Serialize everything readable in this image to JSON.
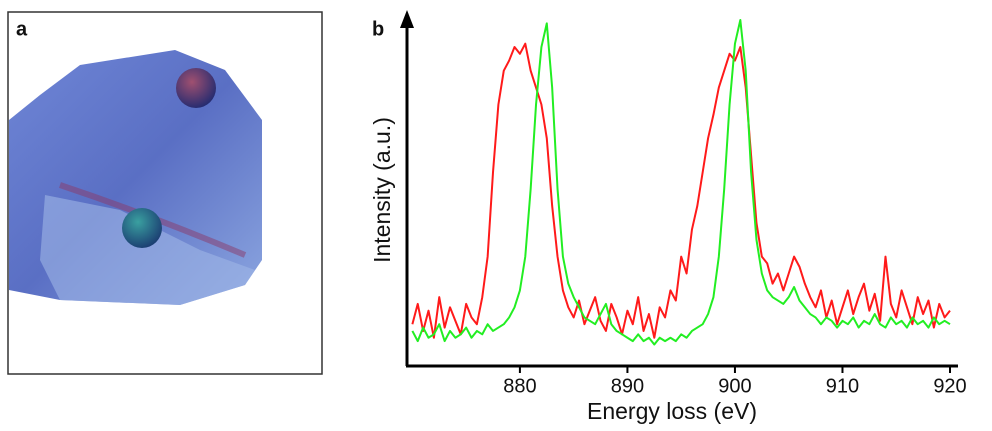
{
  "figure": {
    "panel_a_label": "a",
    "panel_b_label": "b"
  },
  "chart_data": {
    "type": "line",
    "x_label": "Energy loss (eV)",
    "y_label": "Intensity (a.u.)",
    "xlim": [
      869.5,
      920
    ],
    "xticks": [
      880,
      890,
      900,
      910,
      920
    ],
    "ylim": [
      0,
      1
    ],
    "x": [
      870,
      870.5,
      871,
      871.5,
      872,
      872.5,
      873,
      873.5,
      874,
      874.5,
      875,
      875.5,
      876,
      876.5,
      877,
      877.5,
      878,
      878.5,
      879,
      879.5,
      880,
      880.5,
      881,
      881.5,
      882,
      882.5,
      883,
      883.5,
      884,
      884.5,
      885,
      885.5,
      886,
      886.5,
      887,
      887.5,
      888,
      888.5,
      889,
      889.5,
      890,
      890.5,
      891,
      891.5,
      892,
      892.5,
      893,
      893.5,
      894,
      894.5,
      895,
      895.5,
      896,
      896.5,
      897,
      897.5,
      898,
      898.5,
      899,
      899.5,
      900,
      900.5,
      901,
      901.5,
      902,
      902.5,
      903,
      903.5,
      904,
      904.5,
      905,
      905.5,
      906,
      906.5,
      907,
      907.5,
      908,
      908.5,
      909,
      909.5,
      910,
      910.5,
      911,
      911.5,
      912,
      912.5,
      913,
      913.5,
      914,
      914.5,
      915,
      915.5,
      916,
      916.5,
      917,
      917.5,
      918,
      918.5,
      919,
      919.5,
      920
    ],
    "series": [
      {
        "color": "#ff1a1a",
        "values": [
          0.1,
          0.16,
          0.08,
          0.14,
          0.06,
          0.18,
          0.09,
          0.15,
          0.11,
          0.07,
          0.16,
          0.12,
          0.1,
          0.18,
          0.3,
          0.55,
          0.75,
          0.85,
          0.88,
          0.92,
          0.9,
          0.93,
          0.85,
          0.8,
          0.75,
          0.65,
          0.45,
          0.3,
          0.2,
          0.15,
          0.12,
          0.17,
          0.1,
          0.14,
          0.18,
          0.11,
          0.08,
          0.16,
          0.12,
          0.07,
          0.14,
          0.1,
          0.18,
          0.08,
          0.13,
          0.06,
          0.15,
          0.12,
          0.2,
          0.17,
          0.3,
          0.25,
          0.38,
          0.45,
          0.55,
          0.65,
          0.72,
          0.8,
          0.85,
          0.9,
          0.88,
          0.92,
          0.8,
          0.6,
          0.4,
          0.3,
          0.28,
          0.22,
          0.25,
          0.2,
          0.25,
          0.3,
          0.27,
          0.22,
          0.18,
          0.15,
          0.2,
          0.12,
          0.17,
          0.1,
          0.15,
          0.2,
          0.13,
          0.18,
          0.22,
          0.14,
          0.19,
          0.11,
          0.3,
          0.16,
          0.12,
          0.2,
          0.15,
          0.1,
          0.18,
          0.13,
          0.17,
          0.09,
          0.16,
          0.12,
          0.14
        ]
      },
      {
        "color": "#22ee22",
        "values": [
          0.08,
          0.05,
          0.09,
          0.06,
          0.07,
          0.1,
          0.05,
          0.08,
          0.06,
          0.07,
          0.09,
          0.06,
          0.08,
          0.07,
          0.1,
          0.08,
          0.09,
          0.1,
          0.12,
          0.15,
          0.2,
          0.3,
          0.5,
          0.75,
          0.92,
          0.99,
          0.8,
          0.5,
          0.3,
          0.22,
          0.18,
          0.15,
          0.12,
          0.11,
          0.1,
          0.13,
          0.16,
          0.1,
          0.08,
          0.07,
          0.06,
          0.05,
          0.07,
          0.05,
          0.06,
          0.04,
          0.06,
          0.05,
          0.06,
          0.05,
          0.07,
          0.06,
          0.08,
          0.09,
          0.1,
          0.13,
          0.18,
          0.3,
          0.5,
          0.75,
          0.93,
          1.0,
          0.85,
          0.55,
          0.35,
          0.25,
          0.2,
          0.18,
          0.17,
          0.16,
          0.18,
          0.21,
          0.17,
          0.15,
          0.13,
          0.12,
          0.1,
          0.12,
          0.11,
          0.09,
          0.11,
          0.1,
          0.12,
          0.09,
          0.11,
          0.1,
          0.13,
          0.1,
          0.09,
          0.12,
          0.1,
          0.11,
          0.09,
          0.12,
          0.1,
          0.11,
          0.09,
          0.12,
          0.1,
          0.11,
          0.1
        ]
      }
    ]
  }
}
